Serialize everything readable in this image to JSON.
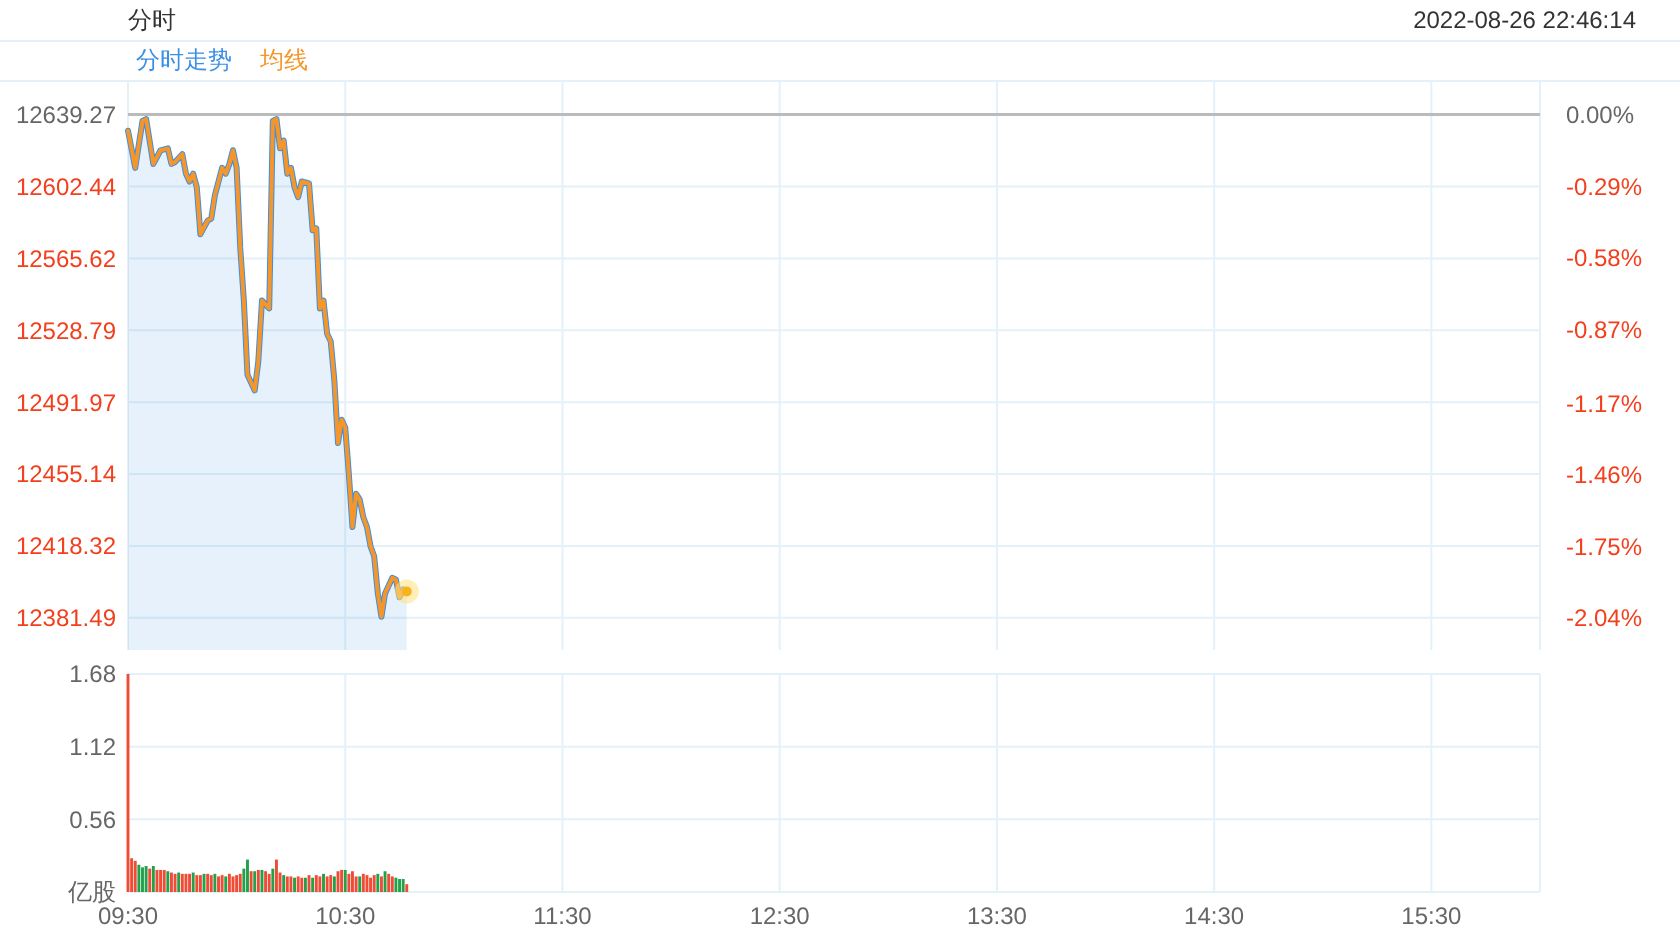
{
  "chart_data": [
    {
      "type": "line",
      "title": "分时",
      "annotations": [
        "2022-08-26 22:46:14"
      ],
      "legend": "top left",
      "grid": true,
      "tick_labels": "y",
      "x": [
        9.5,
        9.5333,
        9.5667,
        9.5833,
        9.6167,
        9.65,
        9.6833,
        9.7,
        9.7167,
        9.75,
        9.7667,
        9.7833,
        9.8,
        9.8167,
        9.8333,
        9.8667,
        9.8833,
        9.9,
        9.9333,
        9.95,
        9.9667,
        9.9833,
        10,
        10.0167,
        10.0333,
        10.05,
        10.0833,
        10.1,
        10.1167,
        10.15,
        10.1667,
        10.1833,
        10.2,
        10.2167,
        10.2333,
        10.25,
        10.2667,
        10.2833,
        10.3,
        10.3333,
        10.35,
        10.3667,
        10.3833,
        10.4,
        10.4167,
        10.4333,
        10.45,
        10.4667,
        10.4833,
        10.5,
        10.5167,
        10.5333,
        10.55,
        10.5667,
        10.5833,
        10.6,
        10.6167,
        10.6333,
        10.65,
        10.6667,
        10.6833,
        10.7167,
        10.7333,
        10.75,
        10.7667,
        10.7833
      ],
      "series": [
        {
          "name": "分时走势",
          "type": "area",
          "color": "#3b8fe5",
          "values": [
            12631,
            12612,
            12636,
            12637,
            12614,
            12621,
            12622,
            12614,
            12615,
            12619,
            12609,
            12605,
            12609,
            12602,
            12578,
            12585,
            12586,
            12598,
            12612,
            12609,
            12614,
            12621,
            12612,
            12571,
            12544,
            12506,
            12498,
            12513,
            12544,
            12540,
            12636,
            12637,
            12622,
            12626,
            12609,
            12612,
            12602,
            12597,
            12605,
            12604,
            12580,
            12581,
            12540,
            12544,
            12527,
            12523,
            12503,
            12471,
            12483,
            12479,
            12455,
            12428,
            12445,
            12442,
            12433,
            12428,
            12418,
            12413,
            12394,
            12382,
            12394,
            12402,
            12401,
            12392,
            12396,
            12395
          ]
        },
        {
          "name": "均线",
          "type": "line",
          "color": "#f5962a",
          "values": [
            12631,
            12612,
            12636,
            12637,
            12614,
            12621,
            12622,
            12614,
            12615,
            12619,
            12609,
            12605,
            12609,
            12602,
            12578,
            12585,
            12586,
            12598,
            12612,
            12609,
            12614,
            12621,
            12612,
            12571,
            12544,
            12506,
            12498,
            12513,
            12544,
            12540,
            12636,
            12637,
            12622,
            12626,
            12609,
            12612,
            12602,
            12597,
            12605,
            12604,
            12580,
            12581,
            12540,
            12544,
            12527,
            12523,
            12503,
            12471,
            12483,
            12479,
            12455,
            12428,
            12445,
            12442,
            12433,
            12428,
            12418,
            12413,
            12394,
            12382,
            12394,
            12402,
            12401,
            12392,
            12396,
            12395
          ]
        }
      ],
      "xlim": [
        9.5,
        16
      ],
      "xticks": [
        {
          "value": 9.5,
          "label": null
        },
        {
          "value": 10.5,
          "label": null
        },
        {
          "value": 11.5,
          "label": null
        },
        {
          "value": 12.5,
          "label": null
        },
        {
          "value": 13.5,
          "label": null
        },
        {
          "value": 14.5,
          "label": null
        },
        {
          "value": 15.5,
          "label": null
        }
      ],
      "ylim": [
        12365,
        12657
      ],
      "yticks": [
        12381.49,
        12418.32,
        12455.14,
        12491.97,
        12528.79,
        12565.62,
        12602.44,
        12639.27
      ],
      "y2lim": [
        -2.17,
        0.14
      ],
      "y2ticks": [
        {
          "value": 0,
          "label": "0.00%"
        },
        {
          "value": -0.29,
          "label": "-0.29%"
        },
        {
          "value": -0.58,
          "label": "-0.58%"
        },
        {
          "value": -0.87,
          "label": "-0.87%"
        },
        {
          "value": -1.17,
          "label": "-1.17%"
        },
        {
          "value": -1.46,
          "label": "-1.46%"
        },
        {
          "value": -1.75,
          "label": "-1.75%"
        },
        {
          "value": -2.04,
          "label": "-2.04%"
        }
      ],
      "ref_lines": [
        {
          "axis": "y",
          "value": 12639.27,
          "color": "#bbbbbb"
        }
      ]
    },
    {
      "type": "bar",
      "grid": true,
      "x": [
        9.5,
        9.5167,
        9.5333,
        9.55,
        9.5667,
        9.5833,
        9.6,
        9.6167,
        9.6333,
        9.65,
        9.6667,
        9.6833,
        9.7,
        9.7167,
        9.7333,
        9.75,
        9.7667,
        9.7833,
        9.8,
        9.8167,
        9.8333,
        9.85,
        9.8667,
        9.8833,
        9.9,
        9.9167,
        9.9333,
        9.95,
        9.9667,
        9.9833,
        10,
        10.0167,
        10.0333,
        10.05,
        10.0667,
        10.0833,
        10.1,
        10.1167,
        10.1333,
        10.15,
        10.1667,
        10.1833,
        10.2,
        10.2167,
        10.2333,
        10.25,
        10.2667,
        10.2833,
        10.3,
        10.3167,
        10.3333,
        10.35,
        10.3667,
        10.3833,
        10.4,
        10.4167,
        10.4333,
        10.45,
        10.4667,
        10.4833,
        10.5,
        10.5167,
        10.5333,
        10.55,
        10.5667,
        10.5833,
        10.6,
        10.6167,
        10.6333,
        10.65,
        10.6667,
        10.6833,
        10.7,
        10.7167,
        10.7333,
        10.75,
        10.7667,
        10.7833
      ],
      "values": [
        1.68,
        0.26,
        0.24,
        0.21,
        0.19,
        0.2,
        0.18,
        0.2,
        0.17,
        0.17,
        0.17,
        0.16,
        0.15,
        0.14,
        0.15,
        0.14,
        0.14,
        0.14,
        0.15,
        0.13,
        0.13,
        0.14,
        0.14,
        0.13,
        0.14,
        0.12,
        0.13,
        0.12,
        0.14,
        0.12,
        0.13,
        0.14,
        0.18,
        0.25,
        0.16,
        0.16,
        0.17,
        0.17,
        0.16,
        0.14,
        0.18,
        0.25,
        0.15,
        0.13,
        0.12,
        0.12,
        0.11,
        0.12,
        0.11,
        0.11,
        0.13,
        0.11,
        0.13,
        0.12,
        0.14,
        0.12,
        0.13,
        0.12,
        0.16,
        0.17,
        0.17,
        0.14,
        0.16,
        0.12,
        0.12,
        0.14,
        0.13,
        0.11,
        0.13,
        0.14,
        0.12,
        0.16,
        0.14,
        0.12,
        0.11,
        0.1,
        0.1,
        0.06
      ],
      "colors": [
        "#ef4b35",
        "#ef4b35",
        "#ef4b35",
        "#22a04b",
        "#22a04b",
        "#22a04b",
        "#ef4b35",
        "#22a04b",
        "#ef4b35",
        "#ef4b35",
        "#ef4b35",
        "#22a04b",
        "#ef4b35",
        "#ef4b35",
        "#22a04b",
        "#ef4b35",
        "#ef4b35",
        "#ef4b35",
        "#22a04b",
        "#ef4b35",
        "#ef4b35",
        "#22a04b",
        "#ef4b35",
        "#ef4b35",
        "#22a04b",
        "#ef4b35",
        "#ef4b35",
        "#22a04b",
        "#ef4b35",
        "#ef4b35",
        "#ef4b35",
        "#ef4b35",
        "#22a04b",
        "#22a04b",
        "#ef4b35",
        "#22a04b",
        "#ef4b35",
        "#22a04b",
        "#ef4b35",
        "#ef4b35",
        "#22a04b",
        "#ef4b35",
        "#ef4b35",
        "#22a04b",
        "#ef4b35",
        "#ef4b35",
        "#22a04b",
        "#ef4b35",
        "#ef4b35",
        "#22a04b",
        "#ef4b35",
        "#22a04b",
        "#ef4b35",
        "#ef4b35",
        "#22a04b",
        "#ef4b35",
        "#ef4b35",
        "#22a04b",
        "#ef4b35",
        "#ef4b35",
        "#22a04b",
        "#ef4b35",
        "#ef4b35",
        "#ef4b35",
        "#22a04b",
        "#ef4b35",
        "#ef4b35",
        "#ef4b35",
        "#ef4b35",
        "#22a04b",
        "#ef4b35",
        "#22a04b",
        "#ef4b35",
        "#ef4b35",
        "#22a04b",
        "#22a04b",
        "#22a04b",
        "#ef4b35"
      ],
      "xlim": [
        9.5,
        16
      ],
      "xticks": [
        {
          "value": 9.5,
          "label": "09:30"
        },
        {
          "value": 10.5,
          "label": "10:30"
        },
        {
          "value": 11.5,
          "label": "11:30"
        },
        {
          "value": 12.5,
          "label": "12:30"
        },
        {
          "value": 13.5,
          "label": "13:30"
        },
        {
          "value": 14.5,
          "label": "14:30"
        },
        {
          "value": 15.5,
          "label": "15:30"
        }
      ],
      "ylim": [
        0,
        1.68
      ],
      "yticks": [
        {
          "value": 0,
          "label": "亿股"
        },
        0.56,
        1.12,
        1.68
      ]
    }
  ]
}
